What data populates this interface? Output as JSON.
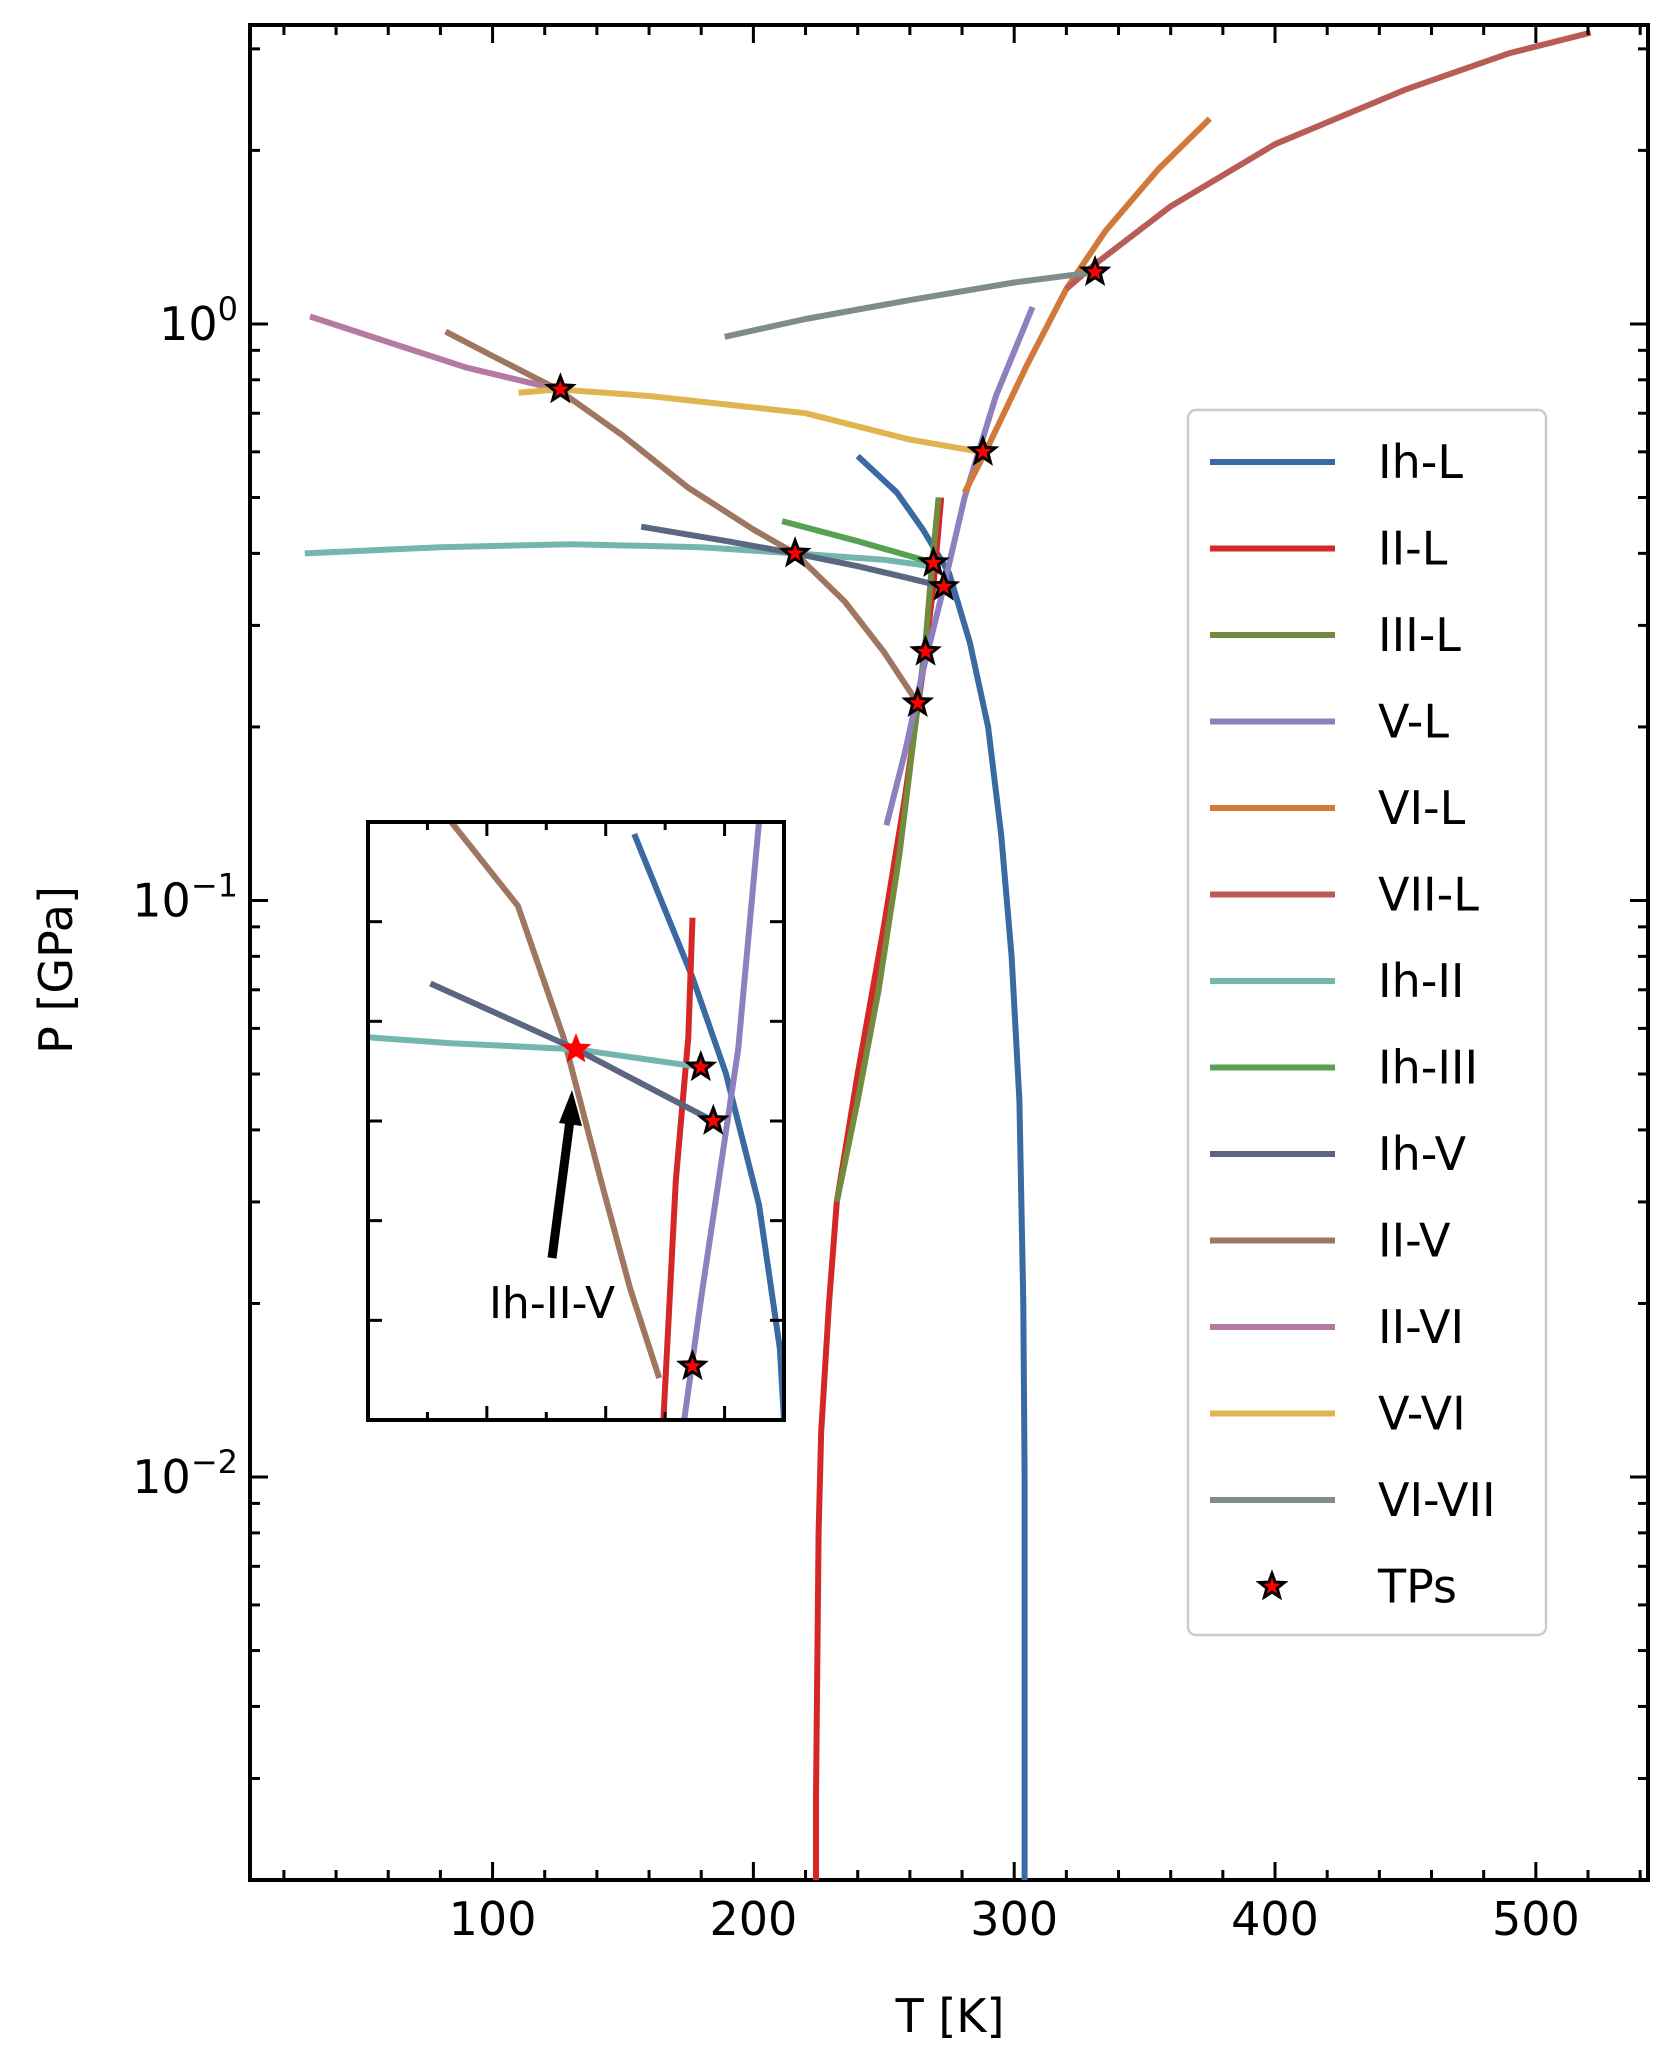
{
  "chart_data": {
    "type": "line",
    "xlabel": "T [K]",
    "ylabel": "P [GPa]",
    "xscale": "linear",
    "yscale": "log",
    "xlim": [
      7,
      543
    ],
    "ylim": [
      0.002,
      3.3
    ],
    "xticks": [
      {
        "value": 100,
        "label": "100"
      },
      {
        "value": 200,
        "label": "200"
      },
      {
        "value": 300,
        "label": "300"
      },
      {
        "value": 400,
        "label": "400"
      },
      {
        "value": 500,
        "label": "500"
      }
    ],
    "yticks": [
      {
        "value": 1,
        "base": "10",
        "exp": "0"
      },
      {
        "value": 0.1,
        "base": "10",
        "exp": "−1"
      },
      {
        "value": 0.01,
        "base": "10",
        "exp": "−2"
      }
    ],
    "legend_position": "right",
    "series": [
      {
        "name": "Ih-L",
        "color": "#3a6aa2",
        "points": [
          [
            240,
            0.59
          ],
          [
            255,
            0.51
          ],
          [
            265,
            0.44
          ],
          [
            275,
            0.37
          ],
          [
            283,
            0.28
          ],
          [
            290,
            0.2
          ],
          [
            295,
            0.13
          ],
          [
            299,
            0.08
          ],
          [
            302,
            0.045
          ],
          [
            303.5,
            0.02
          ],
          [
            304,
            0.01
          ],
          [
            304,
            0.002
          ]
        ]
      },
      {
        "name": "II-L",
        "color": "#d62728",
        "points": [
          [
            224,
            0.002
          ],
          [
            224,
            0.0028
          ],
          [
            225,
            0.008
          ],
          [
            226,
            0.012
          ],
          [
            229,
            0.02
          ],
          [
            232,
            0.03
          ],
          [
            240,
            0.05
          ],
          [
            250,
            0.09
          ],
          [
            258,
            0.15
          ],
          [
            265,
            0.25
          ],
          [
            269,
            0.35
          ],
          [
            272,
            0.5
          ]
        ]
      },
      {
        "name": "III-L",
        "color": "#728b3e",
        "points": [
          [
            232,
            0.03
          ],
          [
            240,
            0.045
          ],
          [
            248,
            0.07
          ],
          [
            256,
            0.12
          ],
          [
            262,
            0.2
          ],
          [
            266,
            0.28
          ],
          [
            268,
            0.36
          ],
          [
            271,
            0.5
          ]
        ]
      },
      {
        "name": "V-L",
        "color": "#8e7fbf",
        "points": [
          [
            251,
            0.135
          ],
          [
            258,
            0.18
          ],
          [
            265,
            0.25
          ],
          [
            273,
            0.35
          ],
          [
            281,
            0.5
          ],
          [
            293,
            0.75
          ],
          [
            307,
            1.07
          ]
        ]
      },
      {
        "name": "VI-L",
        "color": "#d0793a",
        "points": [
          [
            281,
            0.51
          ],
          [
            289,
            0.6
          ],
          [
            305,
            0.85
          ],
          [
            320,
            1.15
          ],
          [
            335,
            1.45
          ],
          [
            355,
            1.85
          ],
          [
            375,
            2.27
          ]
        ]
      },
      {
        "name": "VII-L",
        "color": "#b85c58",
        "points": [
          [
            320,
            1.15
          ],
          [
            331,
            1.27
          ],
          [
            360,
            1.6
          ],
          [
            400,
            2.05
          ],
          [
            450,
            2.55
          ],
          [
            490,
            2.95
          ],
          [
            521,
            3.2
          ]
        ]
      },
      {
        "name": "Ih-II",
        "color": "#74b6ad",
        "points": [
          [
            28,
            0.4
          ],
          [
            80,
            0.41
          ],
          [
            130,
            0.415
          ],
          [
            180,
            0.41
          ],
          [
            216,
            0.4
          ],
          [
            250,
            0.39
          ],
          [
            268,
            0.38
          ]
        ]
      },
      {
        "name": "Ih-III",
        "color": "#57a152",
        "points": [
          [
            211,
            0.455
          ],
          [
            240,
            0.42
          ],
          [
            269,
            0.385
          ]
        ]
      },
      {
        "name": "Ih-V",
        "color": "#5b6781",
        "points": [
          [
            157,
            0.445
          ],
          [
            190,
            0.42
          ],
          [
            216,
            0.4
          ],
          [
            240,
            0.38
          ],
          [
            260,
            0.362
          ],
          [
            273,
            0.35
          ]
        ]
      },
      {
        "name": "II-V",
        "color": "#9e7661",
        "points": [
          [
            82,
            0.97
          ],
          [
            100,
            0.88
          ],
          [
            125,
            0.77
          ],
          [
            150,
            0.64
          ],
          [
            175,
            0.52
          ],
          [
            200,
            0.44
          ],
          [
            216,
            0.4
          ],
          [
            235,
            0.33
          ],
          [
            250,
            0.27
          ],
          [
            263,
            0.22
          ]
        ]
      },
      {
        "name": "II-VI",
        "color": "#b57aa4",
        "points": [
          [
            30,
            1.03
          ],
          [
            60,
            0.93
          ],
          [
            90,
            0.84
          ],
          [
            125,
            0.77
          ]
        ]
      },
      {
        "name": "V-VI",
        "color": "#e0b44e",
        "points": [
          [
            110,
            0.76
          ],
          [
            125,
            0.77
          ],
          [
            160,
            0.75
          ],
          [
            220,
            0.7
          ],
          [
            260,
            0.63
          ],
          [
            287,
            0.6
          ]
        ]
      },
      {
        "name": "VI-VII",
        "color": "#7f8c8a",
        "points": [
          [
            189,
            0.95
          ],
          [
            220,
            1.02
          ],
          [
            260,
            1.1
          ],
          [
            300,
            1.18
          ],
          [
            331,
            1.23
          ]
        ]
      }
    ],
    "triple_points": {
      "name": "TPs",
      "color": "#ff0000",
      "points": [
        [
          126,
          0.77
        ],
        [
          216,
          0.4
        ],
        [
          269,
          0.385
        ],
        [
          273,
          0.35
        ],
        [
          266,
          0.27
        ],
        [
          263,
          0.22
        ],
        [
          288,
          0.6
        ],
        [
          331,
          1.23
        ]
      ]
    },
    "inset": {
      "annotation": "Ih-II-V",
      "lines": [
        {
          "name": "II-V",
          "color": "#9e7661",
          "points": [
            [
              0.2,
              0.0
            ],
            [
              0.36,
              0.14
            ],
            [
              0.47,
              0.36
            ],
            [
              0.56,
              0.6
            ],
            [
              0.63,
              0.78
            ],
            [
              0.7,
              0.93
            ]
          ]
        },
        {
          "name": "Ih-L",
          "color": "#3a6aa2",
          "points": [
            [
              0.64,
              0.02
            ],
            [
              0.78,
              0.26
            ],
            [
              0.86,
              0.42
            ],
            [
              0.94,
              0.64
            ],
            [
              0.99,
              0.88
            ],
            [
              1.0,
              1.0
            ]
          ]
        },
        {
          "name": "II-L",
          "color": "#d62728",
          "points": [
            [
              0.78,
              0.16
            ],
            [
              0.77,
              0.36
            ],
            [
              0.74,
              0.6
            ],
            [
              0.71,
              1.0
            ]
          ]
        },
        {
          "name": "V-L",
          "color": "#8e7fbf",
          "points": [
            [
              0.94,
              0.0
            ],
            [
              0.89,
              0.38
            ],
            [
              0.8,
              0.8
            ],
            [
              0.76,
              1.0
            ]
          ]
        },
        {
          "name": "Ih-II",
          "color": "#74b6ad",
          "points": [
            [
              0.0,
              0.36
            ],
            [
              0.2,
              0.37
            ],
            [
              0.5,
              0.38
            ],
            [
              0.8,
              0.41
            ]
          ]
        },
        {
          "name": "Ih-V",
          "color": "#5b6781",
          "points": [
            [
              0.15,
              0.27
            ],
            [
              0.5,
              0.38
            ],
            [
              0.83,
              0.5
            ]
          ]
        }
      ],
      "star_main": {
        "label": "Ih-II-V",
        "point": [
          0.5,
          0.38
        ],
        "color": "#ff0000"
      },
      "tps": [
        [
          0.8,
          0.41
        ],
        [
          0.83,
          0.5
        ],
        [
          0.78,
          0.91
        ]
      ]
    }
  }
}
